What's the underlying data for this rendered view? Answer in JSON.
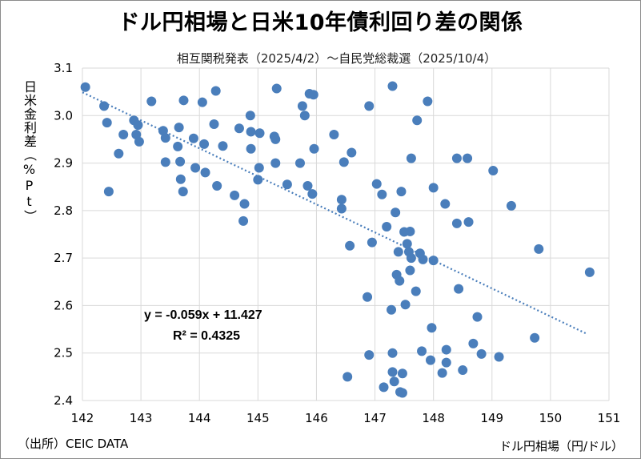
{
  "chart_data": {
    "type": "scatter",
    "title": "ドル円相場と日米10年債利回り差の関係",
    "subtitle": "相互関税発表（2025/4/2）～自民党総裁選（2025/10/4）",
    "xlabel": "ドル円相場（円/ドル）",
    "ylabel": "日米金利差（%Pt）",
    "source": "（出所）CEIC DATA",
    "xlim": [
      142,
      151
    ],
    "ylim": [
      2.4,
      3.1
    ],
    "xticks": [
      "142",
      "143",
      "144",
      "145",
      "146",
      "147",
      "148",
      "149",
      "150",
      "151"
    ],
    "yticks": [
      "2.4",
      "2.5",
      "2.6",
      "2.7",
      "2.8",
      "2.9",
      "3.0",
      "3.1"
    ],
    "grid": true,
    "marker_color": "#4a7ebb",
    "trendline": {
      "slope": -0.059,
      "intercept": 11.427,
      "x_range": [
        142.0,
        150.6
      ],
      "equation_label": "y = -0.059x + 11.427",
      "r2_label": "R² = 0.4325",
      "color": "#4a7ebb"
    },
    "points": [
      [
        142.05,
        3.06
      ],
      [
        142.37,
        3.02
      ],
      [
        142.42,
        2.985
      ],
      [
        142.45,
        2.84
      ],
      [
        142.62,
        2.92
      ],
      [
        142.7,
        2.96
      ],
      [
        142.88,
        2.99
      ],
      [
        142.92,
        2.96
      ],
      [
        142.95,
        2.98
      ],
      [
        142.97,
        2.945
      ],
      [
        143.18,
        3.03
      ],
      [
        143.38,
        2.968
      ],
      [
        143.42,
        2.953
      ],
      [
        143.42,
        2.902
      ],
      [
        143.63,
        2.935
      ],
      [
        143.65,
        2.975
      ],
      [
        143.67,
        2.903
      ],
      [
        143.68,
        2.866
      ],
      [
        143.72,
        2.84
      ],
      [
        143.73,
        3.032
      ],
      [
        143.9,
        2.952
      ],
      [
        143.93,
        2.89
      ],
      [
        144.05,
        3.028
      ],
      [
        144.08,
        2.94
      ],
      [
        144.1,
        2.88
      ],
      [
        144.25,
        2.982
      ],
      [
        144.28,
        3.052
      ],
      [
        144.3,
        2.852
      ],
      [
        144.4,
        2.936
      ],
      [
        144.6,
        2.832
      ],
      [
        144.68,
        2.973
      ],
      [
        144.75,
        2.778
      ],
      [
        144.77,
        2.814
      ],
      [
        144.87,
        3.0
      ],
      [
        144.88,
        2.966
      ],
      [
        144.88,
        2.93
      ],
      [
        145.0,
        2.865
      ],
      [
        145.02,
        2.89
      ],
      [
        145.03,
        2.963
      ],
      [
        145.28,
        2.956
      ],
      [
        145.3,
        2.95
      ],
      [
        145.3,
        2.9
      ],
      [
        145.32,
        3.057
      ],
      [
        145.5,
        2.855
      ],
      [
        145.72,
        2.9
      ],
      [
        145.76,
        3.02
      ],
      [
        145.8,
        3.0
      ],
      [
        145.85,
        2.852
      ],
      [
        145.88,
        3.046
      ],
      [
        145.93,
        2.835
      ],
      [
        145.95,
        3.044
      ],
      [
        145.96,
        2.93
      ],
      [
        146.3,
        2.96
      ],
      [
        146.43,
        2.823
      ],
      [
        146.43,
        2.804
      ],
      [
        146.47,
        2.902
      ],
      [
        146.53,
        2.45
      ],
      [
        146.57,
        2.726
      ],
      [
        146.6,
        2.922
      ],
      [
        146.87,
        2.618
      ],
      [
        146.9,
        3.02
      ],
      [
        146.9,
        2.496
      ],
      [
        146.95,
        2.733
      ],
      [
        147.03,
        2.856
      ],
      [
        147.12,
        2.834
      ],
      [
        147.15,
        2.428
      ],
      [
        147.2,
        2.766
      ],
      [
        147.28,
        2.591
      ],
      [
        147.3,
        3.062
      ],
      [
        147.3,
        2.46
      ],
      [
        147.3,
        2.5
      ],
      [
        147.33,
        2.44
      ],
      [
        147.35,
        2.796
      ],
      [
        147.37,
        2.665
      ],
      [
        147.4,
        2.713
      ],
      [
        147.42,
        2.652
      ],
      [
        147.43,
        2.418
      ],
      [
        147.45,
        2.84
      ],
      [
        147.47,
        2.457
      ],
      [
        147.47,
        2.416
      ],
      [
        147.5,
        2.755
      ],
      [
        147.52,
        2.602
      ],
      [
        147.55,
        2.73
      ],
      [
        147.58,
        2.713
      ],
      [
        147.6,
        2.756
      ],
      [
        147.6,
        2.674
      ],
      [
        147.62,
        2.7
      ],
      [
        147.62,
        2.91
      ],
      [
        147.7,
        2.63
      ],
      [
        147.72,
        2.99
      ],
      [
        147.77,
        2.71
      ],
      [
        147.8,
        2.504
      ],
      [
        147.82,
        2.697
      ],
      [
        147.9,
        3.03
      ],
      [
        147.95,
        2.485
      ],
      [
        147.97,
        2.553
      ],
      [
        148.0,
        2.848
      ],
      [
        148.0,
        2.695
      ],
      [
        148.15,
        2.458
      ],
      [
        148.2,
        2.814
      ],
      [
        148.22,
        2.48
      ],
      [
        148.22,
        2.507
      ],
      [
        148.4,
        2.91
      ],
      [
        148.4,
        2.773
      ],
      [
        148.43,
        2.635
      ],
      [
        148.5,
        2.464
      ],
      [
        148.58,
        2.91
      ],
      [
        148.6,
        2.776
      ],
      [
        148.68,
        2.52
      ],
      [
        148.75,
        2.576
      ],
      [
        148.82,
        2.498
      ],
      [
        149.02,
        2.884
      ],
      [
        149.12,
        2.492
      ],
      [
        149.33,
        2.81
      ],
      [
        149.73,
        2.532
      ],
      [
        149.8,
        2.719
      ],
      [
        150.67,
        2.67
      ]
    ]
  }
}
